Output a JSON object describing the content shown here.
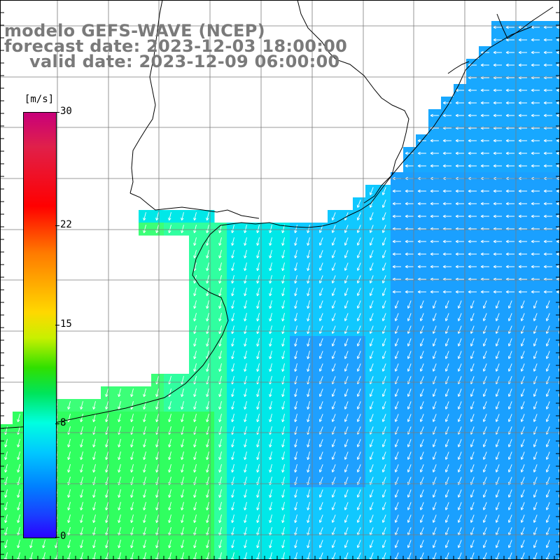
{
  "titles": {
    "model": "modelo GEFS-WAVE (NCEP)",
    "forecast": "forecast date: 2023-12-03 18:00:00",
    "valid": "valid date: 2023-12-09 06:00:00"
  },
  "colorbar": {
    "unit": "[m/s]",
    "ticks": [
      {
        "value": 30,
        "label": "30"
      },
      {
        "value": 22,
        "label": "22"
      },
      {
        "value": 15,
        "label": "15"
      },
      {
        "value": 8,
        "label": "8"
      },
      {
        "value": 0,
        "label": "0"
      }
    ],
    "min": 0,
    "max": 30
  },
  "map": {
    "field": "wind speed with direction arrows",
    "arrow_direction": "southwest in south/west, west in northeast",
    "colors": {
      "land": "#ffffff",
      "grid": "#777777",
      "coastline": "#000000",
      "arrow": "#ffffff"
    }
  }
}
